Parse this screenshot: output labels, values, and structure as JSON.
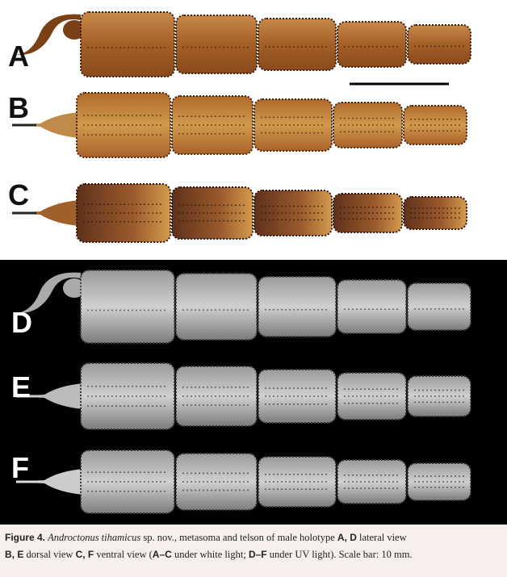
{
  "panels": [
    {
      "label": "A"
    },
    {
      "label": "B"
    },
    {
      "label": "C"
    },
    {
      "label": "D"
    },
    {
      "label": "E"
    },
    {
      "label": "F"
    }
  ],
  "caption": {
    "line1": [
      {
        "text": "Figure 4.",
        "style": "bold"
      },
      {
        "text": " ",
        "style": "plain"
      },
      {
        "text": "Androctonus tihamicus",
        "style": "italic"
      },
      {
        "text": " sp. nov., metasoma and telson of male holotype ",
        "style": "plain"
      },
      {
        "text": "A, D",
        "style": "bold"
      },
      {
        "text": " lateral view",
        "style": "plain"
      }
    ],
    "line2": [
      {
        "text": "B, E",
        "style": "bold"
      },
      {
        "text": " dorsal view ",
        "style": "plain"
      },
      {
        "text": "C, F",
        "style": "bold"
      },
      {
        "text": " ventral view (",
        "style": "plain"
      },
      {
        "text": "A–C",
        "style": "bold"
      },
      {
        "text": " under white light; ",
        "style": "plain"
      },
      {
        "text": "D–F",
        "style": "bold"
      },
      {
        "text": " under UV light). Scale bar: 10 mm.",
        "style": "plain"
      }
    ]
  }
}
